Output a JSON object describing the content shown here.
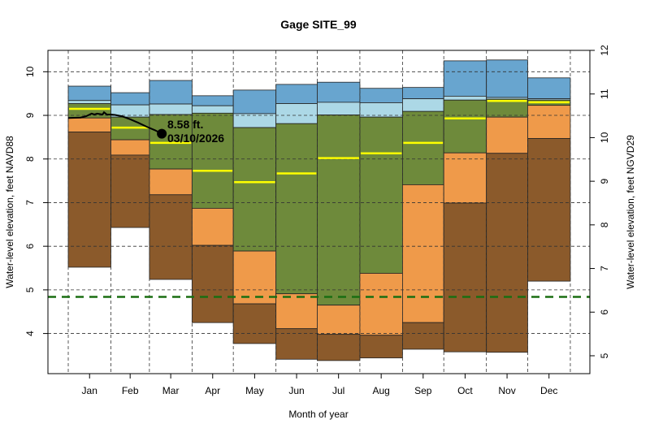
{
  "chart_data": {
    "type": "area",
    "title": "Gage SITE_99",
    "xlabel": "Month of year",
    "ylabel": "Water-level elevation, feet NAVD88",
    "ylabel_right": "Water-level elevation, feet NGVD29",
    "categories": [
      "Jan",
      "Feb",
      "Mar",
      "Apr",
      "May",
      "Jun",
      "Jul",
      "Aug",
      "Sep",
      "Oct",
      "Nov",
      "Dec"
    ],
    "yticks": [
      4,
      5,
      6,
      7,
      8,
      9,
      10
    ],
    "yticks_right": [
      5,
      6,
      7,
      8,
      9,
      10,
      11,
      12
    ],
    "ylim": [
      3.08,
      10.49
    ],
    "grid": true,
    "stats": {
      "max": [
        9.67,
        9.52,
        9.8,
        9.45,
        9.58,
        9.71,
        9.76,
        9.62,
        9.64,
        10.25,
        10.27,
        9.86
      ],
      "p90": [
        9.34,
        9.24,
        9.26,
        9.22,
        9.04,
        9.27,
        9.3,
        9.29,
        9.38,
        9.44,
        9.41,
        9.38
      ],
      "p75": [
        9.27,
        8.96,
        9.02,
        9.05,
        8.72,
        8.81,
        9.01,
        8.96,
        9.09,
        9.35,
        9.37,
        9.35
      ],
      "median": [
        9.15,
        8.72,
        8.37,
        7.73,
        7.47,
        7.67,
        8.02,
        8.13,
        8.37,
        8.93,
        9.33,
        9.3
      ],
      "p25": [
        8.94,
        8.44,
        7.77,
        6.87,
        5.89,
        4.91,
        4.65,
        5.38,
        7.41,
        8.14,
        8.96,
        9.23
      ],
      "p10": [
        8.62,
        8.09,
        7.18,
        6.02,
        4.68,
        4.11,
        3.98,
        3.96,
        4.25,
        6.99,
        8.13,
        8.47
      ],
      "min": [
        5.52,
        6.43,
        5.24,
        4.25,
        3.77,
        3.41,
        3.38,
        3.44,
        3.64,
        3.58,
        3.57,
        5.2
      ]
    },
    "reference_line": 4.84,
    "current_series": {
      "x": [
        "2026-01-01",
        "2026-01-10",
        "2026-01-14",
        "2026-01-18",
        "2026-01-20",
        "2026-01-22",
        "2026-01-26",
        "2026-01-27",
        "2026-01-29",
        "2026-02-01",
        "2026-02-04",
        "2026-02-09",
        "2026-02-15",
        "2026-02-21",
        "2026-02-27",
        "2026-03-05",
        "2026-03-10"
      ],
      "y": [
        8.94,
        8.95,
        8.98,
        9.04,
        9.02,
        9.04,
        9.02,
        9.07,
        9.02,
        9.02,
        9.01,
        8.98,
        8.91,
        8.83,
        8.74,
        8.66,
        8.58
      ]
    },
    "annotation": {
      "value": "8.58 ft.",
      "date": "03/10/2026"
    },
    "colors": {
      "max_band": "#68a5cf",
      "p90_band": "#acd8e6",
      "p75_band": "#6e8a3b",
      "p25_band": "#ef9a4a",
      "p10_band": "#8b5a2b",
      "median": "#ffff00",
      "reference": "#1a6e12",
      "current": "#000000"
    }
  }
}
